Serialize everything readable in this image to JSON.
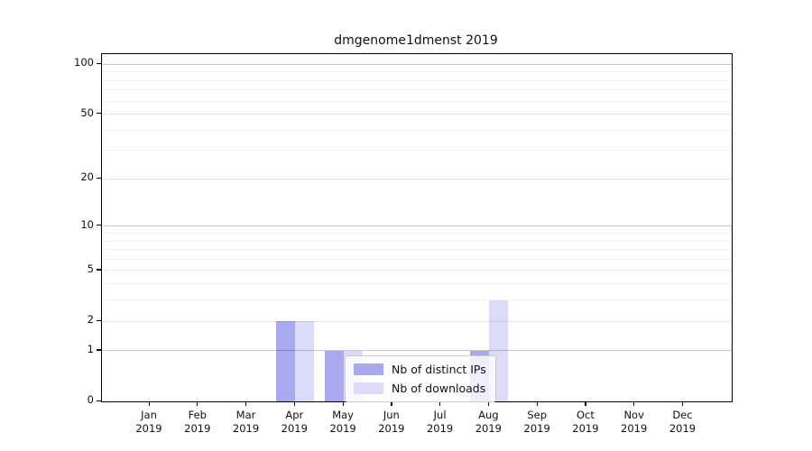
{
  "chart_data": {
    "type": "bar",
    "title": "dmgenome1dmenst 2019",
    "months": [
      "Jan",
      "Feb",
      "Mar",
      "Apr",
      "May",
      "Jun",
      "Jul",
      "Aug",
      "Sep",
      "Oct",
      "Nov",
      "Dec"
    ],
    "year": "2019",
    "series": [
      {
        "name": "Nb of distinct IPs",
        "color": "#a9a9f0",
        "values": [
          0,
          0,
          0,
          2,
          1,
          0,
          0,
          1,
          0,
          0,
          0,
          0
        ]
      },
      {
        "name": "Nb of downloads",
        "color": "#dcdcf8",
        "values": [
          0,
          0,
          0,
          2,
          1,
          0,
          0,
          3,
          0,
          0,
          0,
          0
        ]
      }
    ],
    "y_ticks": [
      0,
      1,
      2,
      5,
      10,
      20,
      50,
      100
    ],
    "y_minor_gridlines": [
      3,
      4,
      6,
      7,
      8,
      9,
      30,
      40,
      60,
      70,
      80,
      90
    ],
    "y_scale": "log1p",
    "ylim": [
      0,
      115
    ],
    "grid": true,
    "legend_position": "lower-center",
    "colors": {
      "axis": "#000000",
      "grid_decade": "rgba(0,0,0,0.22)",
      "grid_mid": "rgba(0,0,0,0.10)",
      "grid_minor": "rgba(0,0,0,0.055)"
    }
  }
}
